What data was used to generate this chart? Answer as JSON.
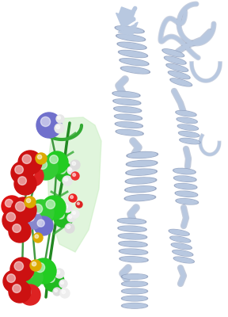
{
  "bg_color": "#ffffff",
  "helix_color": "#b8c8e0",
  "helix_shadow": "#8898b8",
  "helix_edge": "#9aaac8",
  "loop_color": "#b8c8e0",
  "green_sheet": "#c8eec8",
  "site_green": "#22cc22",
  "site_red": "#cc1111",
  "site_white": "#e8e8e8",
  "site_yellow": "#ddaa00",
  "site_blue": "#7070cc",
  "site_small_red": "#dd3333",
  "bond_color": "#228822",
  "fig_width": 2.88,
  "fig_height": 4.0,
  "dpi": 100
}
